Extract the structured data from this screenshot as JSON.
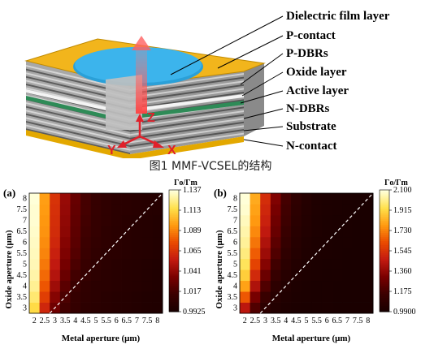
{
  "diagram": {
    "labels": [
      "Dielectric film layer",
      "P-contact",
      "P-DBRs",
      "Oxide layer",
      "Active layer",
      "N-DBRs",
      "Substrate",
      "N-contact"
    ],
    "axes": [
      "Z",
      "Y",
      "X"
    ]
  },
  "caption": "图1 MMF-VCSEL的结构",
  "panels": [
    {
      "tag": "(a)",
      "ylabel": "Oxide aperture (μm)",
      "xlabel": "Metal aperture (μm)",
      "colorbar_title": "Γo/Γm",
      "colorbar_ticks": [
        "1.137",
        "1.113",
        "1.089",
        "1.065",
        "1.041",
        "1.017",
        "0.9925"
      ],
      "colors": [
        "#1a0000",
        "#3c0000",
        "#7a0000",
        "#c31a10",
        "#ea4a00",
        "#ff9a10",
        "#ffe04a",
        "#ffffd8"
      ]
    },
    {
      "tag": "(b)",
      "ylabel": "Oxide aperture (μm)",
      "xlabel": "Metal aperture (μm)",
      "colorbar_title": "Γo/Γm",
      "colorbar_ticks": [
        "2.100",
        "1.915",
        "1.730",
        "1.545",
        "1.360",
        "1.175",
        "0.9900"
      ],
      "colors": [
        "#1a0000",
        "#3c0000",
        "#7a0000",
        "#c31a10",
        "#ea4a00",
        "#ff9a10",
        "#ffe04a",
        "#ffffd8"
      ]
    }
  ],
  "chart_data": [
    {
      "type": "heatmap",
      "x": [
        2,
        2.5,
        3,
        3.5,
        4,
        4.5,
        5,
        5.5,
        6,
        6.5,
        7,
        7.5,
        8
      ],
      "y": [
        3,
        3.5,
        4,
        4.5,
        5,
        5.5,
        6,
        6.5,
        7,
        7.5,
        8
      ],
      "xlabel": "Metal aperture (μm)",
      "ylabel": "Oxide aperture (μm)",
      "colorbar_range": [
        0.9925,
        1.137
      ],
      "values": [
        [
          1.115,
          1.06,
          1.03,
          1.015,
          1.008,
          1.004,
          1.002,
          1.001,
          1.0,
          0.999,
          0.998,
          0.997,
          0.996
        ],
        [
          1.122,
          1.07,
          1.037,
          1.018,
          1.009,
          1.005,
          1.003,
          1.001,
          1.0,
          0.999,
          0.998,
          0.997,
          0.996
        ],
        [
          1.127,
          1.078,
          1.044,
          1.023,
          1.012,
          1.006,
          1.003,
          1.002,
          1.001,
          1.0,
          0.999,
          0.998,
          0.997
        ],
        [
          1.13,
          1.083,
          1.05,
          1.028,
          1.015,
          1.008,
          1.004,
          1.002,
          1.001,
          1.0,
          0.999,
          0.998,
          0.997
        ],
        [
          1.132,
          1.087,
          1.054,
          1.032,
          1.018,
          1.01,
          1.005,
          1.003,
          1.001,
          1.0,
          0.999,
          0.998,
          0.997
        ],
        [
          1.133,
          1.09,
          1.057,
          1.035,
          1.021,
          1.012,
          1.006,
          1.003,
          1.002,
          1.001,
          1.0,
          0.999,
          0.998
        ],
        [
          1.134,
          1.092,
          1.06,
          1.037,
          1.023,
          1.013,
          1.007,
          1.004,
          1.002,
          1.001,
          1.0,
          0.999,
          0.998
        ],
        [
          1.135,
          1.094,
          1.062,
          1.039,
          1.024,
          1.014,
          1.008,
          1.004,
          1.002,
          1.001,
          1.0,
          0.999,
          0.998
        ],
        [
          1.136,
          1.095,
          1.063,
          1.04,
          1.025,
          1.015,
          1.008,
          1.005,
          1.003,
          1.001,
          1.0,
          0.999,
          0.998
        ],
        [
          1.136,
          1.096,
          1.064,
          1.041,
          1.026,
          1.016,
          1.009,
          1.005,
          1.003,
          1.002,
          1.001,
          1.0,
          0.999
        ],
        [
          1.137,
          1.097,
          1.065,
          1.042,
          1.027,
          1.016,
          1.009,
          1.005,
          1.003,
          1.002,
          1.001,
          1.0,
          0.999
        ]
      ]
    },
    {
      "type": "heatmap",
      "x": [
        2,
        2.5,
        3,
        3.5,
        4,
        4.5,
        5,
        5.5,
        6,
        6.5,
        7,
        7.5,
        8
      ],
      "y": [
        3,
        3.5,
        4,
        4.5,
        5,
        5.5,
        6,
        6.5,
        7,
        7.5,
        8
      ],
      "xlabel": "Metal aperture (μm)",
      "ylabel": "Oxide aperture (μm)",
      "colorbar_range": [
        0.99,
        2.1
      ],
      "values": [
        [
          1.45,
          1.2,
          1.08,
          1.03,
          1.01,
          1.0,
          0.996,
          0.994,
          0.993,
          0.992,
          0.991,
          0.991,
          0.99
        ],
        [
          1.65,
          1.3,
          1.13,
          1.05,
          1.02,
          1.005,
          0.998,
          0.995,
          0.993,
          0.992,
          0.991,
          0.991,
          0.99
        ],
        [
          1.8,
          1.42,
          1.2,
          1.08,
          1.03,
          1.01,
          1.0,
          0.996,
          0.994,
          0.992,
          0.991,
          0.991,
          0.99
        ],
        [
          1.9,
          1.52,
          1.27,
          1.12,
          1.05,
          1.02,
          1.005,
          0.998,
          0.995,
          0.993,
          0.992,
          0.991,
          0.99
        ],
        [
          1.96,
          1.6,
          1.33,
          1.16,
          1.07,
          1.03,
          1.01,
          1.0,
          0.996,
          0.993,
          0.992,
          0.991,
          0.99
        ],
        [
          2.0,
          1.66,
          1.38,
          1.2,
          1.09,
          1.04,
          1.015,
          1.003,
          0.997,
          0.994,
          0.992,
          0.991,
          0.99
        ],
        [
          2.03,
          1.71,
          1.42,
          1.23,
          1.11,
          1.05,
          1.02,
          1.005,
          0.998,
          0.995,
          0.993,
          0.991,
          0.99
        ],
        [
          2.05,
          1.75,
          1.46,
          1.26,
          1.13,
          1.06,
          1.025,
          1.008,
          0.999,
          0.995,
          0.993,
          0.992,
          0.99
        ],
        [
          2.07,
          1.78,
          1.49,
          1.28,
          1.15,
          1.07,
          1.03,
          1.01,
          1.0,
          0.996,
          0.993,
          0.992,
          0.991
        ],
        [
          2.09,
          1.8,
          1.51,
          1.3,
          1.16,
          1.08,
          1.035,
          1.012,
          1.002,
          0.997,
          0.994,
          0.992,
          0.991
        ],
        [
          2.1,
          1.82,
          1.53,
          1.32,
          1.17,
          1.09,
          1.04,
          1.015,
          1.003,
          0.997,
          0.994,
          0.992,
          0.991
        ]
      ]
    }
  ]
}
